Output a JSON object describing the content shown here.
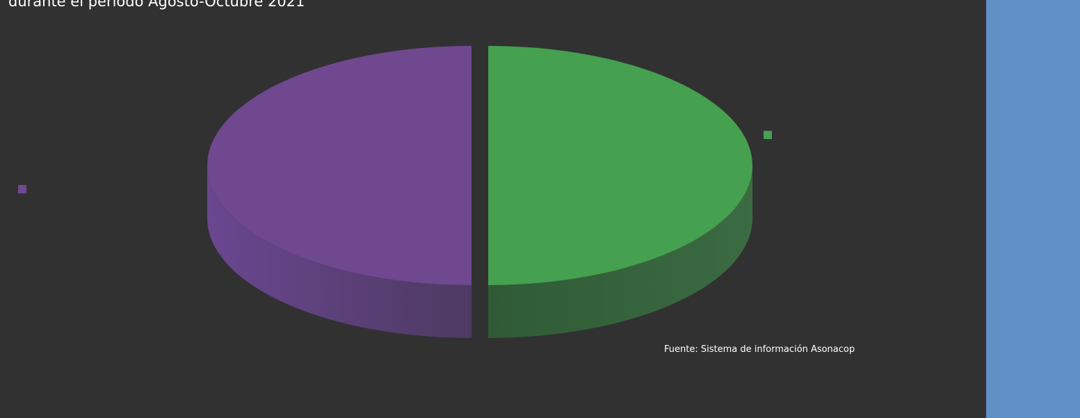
{
  "chart_data": {
    "type": "pie",
    "title": "durante el período Agosto-Octubre 2021",
    "source": "Fuente: Sistema de información Asonacop",
    "slices": [
      {
        "value": 50,
        "color": "#45a050",
        "side_color": "#33603a"
      },
      {
        "value": 50,
        "color": "#70488f",
        "side_color": "#563b72"
      }
    ],
    "legend": [
      {
        "color": "#45a050",
        "placement": "right"
      },
      {
        "color": "#70488f",
        "placement": "left"
      }
    ],
    "style": "3d-exploded"
  },
  "side_panel": {
    "color": "#608fc5"
  }
}
